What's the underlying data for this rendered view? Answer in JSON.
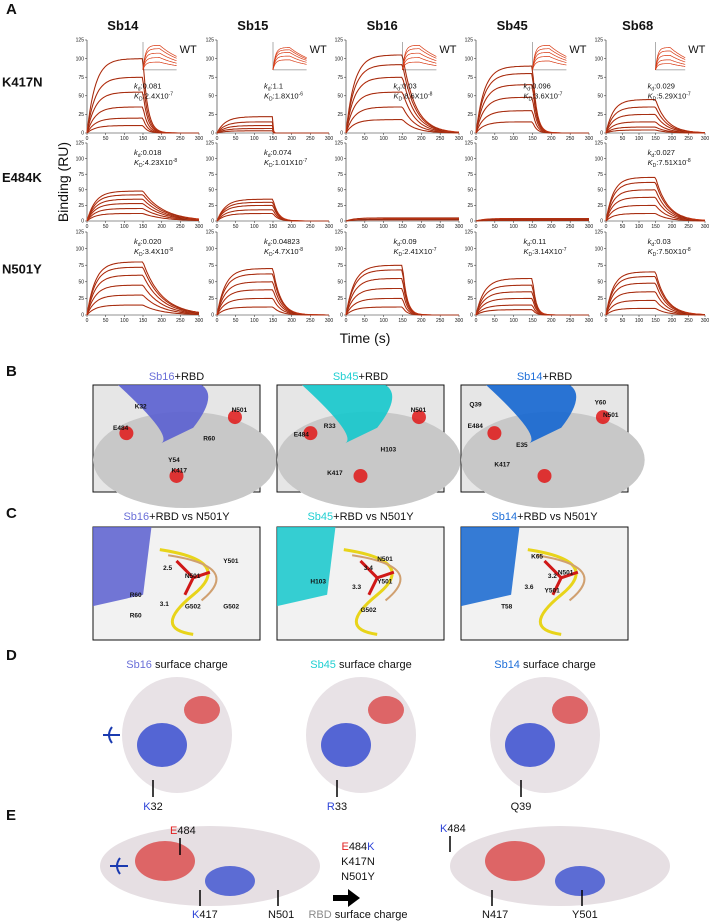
{
  "panel_a": {
    "label": "A",
    "y_label": "Binding (RU)",
    "x_label": "Time (s)",
    "inset_label": "WT",
    "kd_symbol": {
      "k": "k",
      "sub": "d",
      "sep": ":"
    },
    "KD_symbol": {
      "k": "K",
      "sub": "D",
      "sep": ":"
    },
    "columns": [
      "Sb14",
      "Sb15",
      "Sb16",
      "Sb45",
      "Sb68"
    ],
    "rows": [
      "K417N",
      "E484K",
      "N501Y"
    ],
    "xlim": [
      0,
      300
    ],
    "xticks": [
      0,
      50,
      100,
      150,
      200,
      250,
      300
    ],
    "ylim": [
      0,
      125
    ],
    "yticks": [
      0,
      25,
      50,
      75,
      100,
      125
    ],
    "plots": [
      [
        {
          "peaks": [
            100,
            75,
            55,
            35,
            20,
            10
          ],
          "kd": {
            "value": 0.081,
            "label": "0.081"
          },
          "KD": {
            "base": "2.4X10",
            "exp": "-7"
          },
          "inset_peaks": [
            110,
            95,
            75,
            55,
            35
          ]
        },
        {
          "peaks": [
            22,
            15,
            10,
            6,
            3
          ],
          "kd": {
            "value": 1.1,
            "label": "1.1"
          },
          "KD": {
            "base": "1.8X10",
            "exp": "-6"
          },
          "inset_peaks": [
            100,
            90,
            78,
            62,
            45
          ]
        },
        {
          "peaks": [
            105,
            92,
            75,
            55,
            35,
            18
          ],
          "kd": {
            "value": 0.03,
            "label": "0.03"
          },
          "KD": {
            "base": "8.6X10",
            "exp": "-8"
          },
          "inset_peaks": [
            110,
            95,
            75,
            55,
            35
          ]
        },
        {
          "peaks": [
            90,
            80,
            65,
            48,
            30,
            15
          ],
          "kd": {
            "value": 0.096,
            "label": "0.096"
          },
          "KD": {
            "base": "3.6X10",
            "exp": "-7"
          },
          "inset_peaks": [
            110,
            95,
            78,
            60,
            40
          ]
        },
        {
          "peaks": [
            45,
            35,
            25,
            15,
            8,
            4
          ],
          "kd": {
            "value": 0.029,
            "label": "0.029"
          },
          "KD": {
            "base": "5.29X10",
            "exp": "-7"
          },
          "inset_peaks": [
            100,
            85,
            65,
            45,
            28
          ]
        }
      ],
      [
        {
          "peaks": [
            48,
            42,
            35,
            28,
            20,
            12
          ],
          "kd": {
            "value": 0.018,
            "label": "0.018"
          },
          "KD": {
            "base": "4.23X10",
            "exp": "-8"
          }
        },
        {
          "peaks": [
            35,
            30,
            25,
            18,
            12
          ],
          "kd": {
            "value": 0.074,
            "label": "0.074"
          },
          "KD": {
            "base": "1.01X10",
            "exp": "-7"
          }
        },
        {
          "peaks": [
            5,
            3,
            2
          ]
        },
        {
          "peaks": [
            4,
            3,
            2,
            1
          ]
        },
        {
          "peaks": [
            70,
            62,
            50,
            38,
            25,
            12
          ],
          "kd": {
            "value": 0.027,
            "label": "0.027"
          },
          "KD": {
            "base": "7.51X10",
            "exp": "-8"
          }
        }
      ],
      [
        {
          "peaks": [
            80,
            72,
            60,
            45,
            30,
            15
          ],
          "kd": {
            "value": 0.02,
            "label": "0.020"
          },
          "KD": {
            "base": "3.4X10",
            "exp": "-8"
          }
        },
        {
          "peaks": [
            70,
            62,
            50,
            38,
            25,
            12
          ],
          "kd": {
            "value": 0.04823,
            "label": "0.04823"
          },
          "KD": {
            "base": "4.7X10",
            "exp": "-8"
          }
        },
        {
          "peaks": [
            75,
            68,
            55,
            40,
            25,
            12
          ],
          "kd": {
            "value": 0.09,
            "label": "0.09"
          },
          "KD": {
            "base": "2.41X10",
            "exp": "-7"
          }
        },
        {
          "peaks": [
            55,
            45,
            35,
            25,
            15,
            8
          ],
          "kd": {
            "value": 0.11,
            "label": "0.11"
          },
          "KD": {
            "base": "3.14X10",
            "exp": "-7"
          }
        },
        {
          "peaks": [
            65,
            58,
            48,
            35,
            22,
            10
          ],
          "kd": {
            "value": 0.03,
            "label": "0.03"
          },
          "KD": {
            "base": "7.50X10",
            "exp": "-8"
          }
        }
      ]
    ]
  },
  "panel_b": {
    "label": "B",
    "views": [
      {
        "binder": "Sb16",
        "title": "+RBD",
        "residues": [
          "K32",
          "N501",
          "E484",
          "R60",
          "Y54",
          "K417"
        ]
      },
      {
        "binder": "Sb45",
        "title": "+RBD",
        "residues": [
          "N501",
          "E484",
          "R33",
          "H103",
          "K417"
        ]
      },
      {
        "binder": "Sb14",
        "title": "+RBD",
        "residues": [
          "Q39",
          "Y60",
          "N501",
          "E484",
          "E35",
          "K417"
        ]
      }
    ]
  },
  "panel_c": {
    "label": "C",
    "views": [
      {
        "binder": "Sb16",
        "title": "+RBD vs N501Y",
        "residues": [
          "2.5",
          "Y501",
          "R60",
          "N501",
          "3.1",
          "G502",
          "R60",
          "G502"
        ]
      },
      {
        "binder": "Sb45",
        "title": "+RBD vs N501Y",
        "residues": [
          "3.4",
          "N501",
          "H103",
          "3.3",
          "Y501",
          "G502"
        ]
      },
      {
        "binder": "Sb14",
        "title": "+RBD vs N501Y",
        "residues": [
          "K65",
          "3.2",
          "3.6",
          "N501",
          "T58",
          "Y501"
        ]
      }
    ]
  },
  "panel_d": {
    "label": "D",
    "views": [
      {
        "binder": "Sb16",
        "title": " surface charge",
        "residue_letter": "K",
        "residue_number": "32"
      },
      {
        "binder": "Sb45",
        "title": " surface charge",
        "residue_letter": "R",
        "residue_number": "33"
      },
      {
        "binder": "Sb14",
        "title": " surface charge",
        "residue_letter": "",
        "residue_number": "Q39"
      }
    ]
  },
  "panel_e": {
    "label": "E",
    "left": {
      "e484": [
        "E",
        "484"
      ],
      "k417": [
        "K",
        "417"
      ],
      "n501": "N501"
    },
    "middle": {
      "mutation_1": [
        "E",
        "484",
        "K"
      ],
      "mutation_2": "K417N",
      "mutation_3": "N501Y"
    },
    "caption": {
      "rbd": "RBD",
      "rest": " surface charge"
    },
    "right": {
      "k484": [
        "K",
        "484"
      ],
      "n417": "N417",
      "y501": "Y501"
    }
  }
}
